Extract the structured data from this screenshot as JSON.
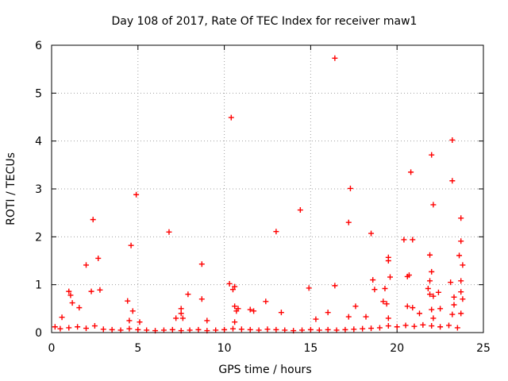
{
  "chart_data": {
    "type": "scatter",
    "title": "Day 108 of 2017, Rate Of TEC Index for receiver maw1",
    "xlabel": "GPS time / hours",
    "ylabel": "ROTI / TECUs",
    "xlim": [
      0,
      25
    ],
    "ylim": [
      0,
      6
    ],
    "xticks": [
      0,
      5,
      10,
      15,
      20,
      25
    ],
    "yticks": [
      0,
      1,
      2,
      3,
      4,
      5,
      6
    ],
    "xtick_labels": [
      "0",
      "5",
      "10",
      "15",
      "20",
      "25"
    ],
    "ytick_labels": [
      "0",
      "1",
      "2",
      "3",
      "4",
      "5",
      "6"
    ],
    "grid": true,
    "marker": "plus",
    "color": "#ff0000",
    "series": [
      {
        "name": "maw1",
        "points": [
          [
            16.4,
            5.73
          ],
          [
            10.4,
            4.49
          ],
          [
            23.2,
            4.02
          ],
          [
            22.0,
            3.71
          ],
          [
            20.8,
            3.35
          ],
          [
            23.2,
            3.17
          ],
          [
            17.3,
            3.01
          ],
          [
            4.9,
            2.88
          ],
          [
            22.1,
            2.67
          ],
          [
            14.4,
            2.56
          ],
          [
            23.7,
            2.39
          ],
          [
            2.4,
            2.36
          ],
          [
            17.2,
            2.3
          ],
          [
            6.8,
            2.1
          ],
          [
            13.0,
            2.11
          ],
          [
            18.5,
            2.07
          ],
          [
            20.4,
            1.94
          ],
          [
            20.9,
            1.94
          ],
          [
            23.7,
            1.91
          ],
          [
            4.6,
            1.82
          ],
          [
            21.9,
            1.62
          ],
          [
            23.6,
            1.61
          ],
          [
            19.5,
            1.57
          ],
          [
            2.7,
            1.55
          ],
          [
            19.5,
            1.5
          ],
          [
            8.7,
            1.43
          ],
          [
            2.0,
            1.41
          ],
          [
            23.8,
            1.41
          ],
          [
            22.0,
            1.27
          ],
          [
            20.7,
            1.2
          ],
          [
            20.6,
            1.17
          ],
          [
            19.6,
            1.16
          ],
          [
            18.6,
            1.1
          ],
          [
            21.9,
            1.08
          ],
          [
            23.1,
            1.05
          ],
          [
            23.7,
            1.08
          ],
          [
            10.3,
            1.02
          ],
          [
            10.6,
            0.96
          ],
          [
            16.4,
            0.98
          ],
          [
            21.8,
            0.92
          ],
          [
            14.9,
            0.93
          ],
          [
            10.5,
            0.9
          ],
          [
            1.0,
            0.86
          ],
          [
            2.3,
            0.86
          ],
          [
            2.8,
            0.89
          ],
          [
            18.7,
            0.9
          ],
          [
            19.3,
            0.92
          ],
          [
            23.7,
            0.85
          ],
          [
            22.4,
            0.84
          ],
          [
            21.9,
            0.8
          ],
          [
            7.9,
            0.8
          ],
          [
            1.1,
            0.78
          ],
          [
            22.1,
            0.76
          ],
          [
            23.3,
            0.74
          ],
          [
            23.8,
            0.7
          ],
          [
            8.7,
            0.7
          ],
          [
            4.4,
            0.66
          ],
          [
            19.2,
            0.65
          ],
          [
            12.4,
            0.65
          ],
          [
            19.4,
            0.6
          ],
          [
            1.2,
            0.62
          ],
          [
            10.6,
            0.55
          ],
          [
            23.3,
            0.58
          ],
          [
            20.6,
            0.55
          ],
          [
            17.6,
            0.55
          ],
          [
            7.5,
            0.5
          ],
          [
            10.8,
            0.5
          ],
          [
            11.5,
            0.48
          ],
          [
            20.9,
            0.52
          ],
          [
            1.6,
            0.52
          ],
          [
            11.7,
            0.45
          ],
          [
            10.7,
            0.45
          ],
          [
            22.0,
            0.48
          ],
          [
            22.5,
            0.5
          ],
          [
            4.7,
            0.45
          ],
          [
            13.3,
            0.42
          ],
          [
            7.5,
            0.4
          ],
          [
            21.3,
            0.4
          ],
          [
            23.7,
            0.4
          ],
          [
            16.0,
            0.42
          ],
          [
            23.2,
            0.38
          ],
          [
            0.6,
            0.32
          ],
          [
            17.2,
            0.33
          ],
          [
            7.6,
            0.3
          ],
          [
            18.2,
            0.33
          ],
          [
            7.2,
            0.3
          ],
          [
            15.3,
            0.28
          ],
          [
            19.5,
            0.3
          ],
          [
            4.5,
            0.25
          ],
          [
            5.1,
            0.22
          ],
          [
            9.0,
            0.25
          ],
          [
            10.6,
            0.22
          ],
          [
            22.1,
            0.3
          ],
          [
            0.2,
            0.12
          ],
          [
            0.5,
            0.08
          ],
          [
            1.0,
            0.1
          ],
          [
            1.5,
            0.12
          ],
          [
            2.0,
            0.09
          ],
          [
            2.5,
            0.14
          ],
          [
            3.0,
            0.07
          ],
          [
            3.5,
            0.06
          ],
          [
            4.0,
            0.05
          ],
          [
            4.5,
            0.08
          ],
          [
            5.0,
            0.06
          ],
          [
            5.5,
            0.05
          ],
          [
            6.0,
            0.04
          ],
          [
            6.5,
            0.05
          ],
          [
            7.0,
            0.06
          ],
          [
            7.5,
            0.04
          ],
          [
            8.0,
            0.05
          ],
          [
            8.5,
            0.06
          ],
          [
            9.0,
            0.04
          ],
          [
            9.5,
            0.05
          ],
          [
            10.0,
            0.06
          ],
          [
            10.5,
            0.08
          ],
          [
            11.0,
            0.07
          ],
          [
            11.5,
            0.06
          ],
          [
            12.0,
            0.05
          ],
          [
            12.5,
            0.07
          ],
          [
            13.0,
            0.06
          ],
          [
            13.5,
            0.05
          ],
          [
            14.0,
            0.04
          ],
          [
            14.5,
            0.05
          ],
          [
            15.0,
            0.06
          ],
          [
            15.5,
            0.05
          ],
          [
            16.0,
            0.06
          ],
          [
            16.5,
            0.05
          ],
          [
            17.0,
            0.06
          ],
          [
            17.5,
            0.07
          ],
          [
            18.0,
            0.08
          ],
          [
            18.5,
            0.09
          ],
          [
            19.0,
            0.1
          ],
          [
            19.5,
            0.14
          ],
          [
            20.0,
            0.12
          ],
          [
            20.5,
            0.15
          ],
          [
            21.0,
            0.13
          ],
          [
            21.5,
            0.16
          ],
          [
            22.0,
            0.14
          ],
          [
            22.5,
            0.12
          ],
          [
            23.0,
            0.15
          ],
          [
            23.5,
            0.1
          ]
        ]
      }
    ]
  }
}
